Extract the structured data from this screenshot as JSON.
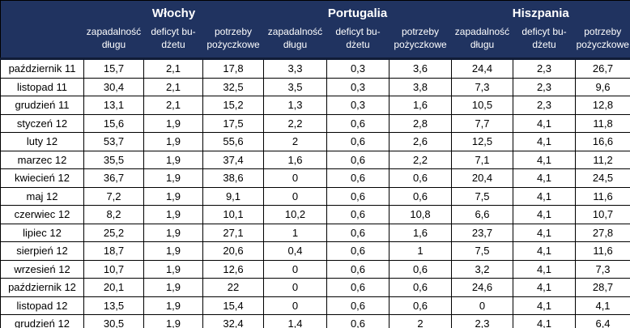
{
  "colors": {
    "header_bg": "#203360",
    "header_text": "#ffffff",
    "border": "#000000",
    "header_divider": "#101b36",
    "body_text": "#000000"
  },
  "chart_data": {
    "type": "table",
    "title": "",
    "column_groups": [
      "Włochy",
      "Portugalia",
      "Hiszpania"
    ],
    "subcolumns": [
      "zapadalność długu",
      "deficyt bu-dżetu",
      "potrzeby pożyczkowe"
    ],
    "row_labels": [
      "październik 11",
      "listopad 11",
      "grudzień 11",
      "styczeń 12",
      "luty 12",
      "marzec 12",
      "kwiecień 12",
      "maj 12",
      "czerwiec 12",
      "lipiec 12",
      "sierpień 12",
      "wrzesień 12",
      "październik 12",
      "listopad 12",
      "grudzień 12"
    ],
    "rows": [
      [
        "15,7",
        "2,1",
        "17,8",
        "3,3",
        "0,3",
        "3,6",
        "24,4",
        "2,3",
        "26,7"
      ],
      [
        "30,4",
        "2,1",
        "32,5",
        "3,5",
        "0,3",
        "3,8",
        "7,3",
        "2,3",
        "9,6"
      ],
      [
        "13,1",
        "2,1",
        "15,2",
        "1,3",
        "0,3",
        "1,6",
        "10,5",
        "2,3",
        "12,8"
      ],
      [
        "15,6",
        "1,9",
        "17,5",
        "2,2",
        "0,6",
        "2,8",
        "7,7",
        "4,1",
        "11,8"
      ],
      [
        "53,7",
        "1,9",
        "55,6",
        "2",
        "0,6",
        "2,6",
        "12,5",
        "4,1",
        "16,6"
      ],
      [
        "35,5",
        "1,9",
        "37,4",
        "1,6",
        "0,6",
        "2,2",
        "7,1",
        "4,1",
        "11,2"
      ],
      [
        "36,7",
        "1,9",
        "38,6",
        "0",
        "0,6",
        "0,6",
        "20,4",
        "4,1",
        "24,5"
      ],
      [
        "7,2",
        "1,9",
        "9,1",
        "0",
        "0,6",
        "0,6",
        "7,5",
        "4,1",
        "11,6"
      ],
      [
        "8,2",
        "1,9",
        "10,1",
        "10,2",
        "0,6",
        "10,8",
        "6,6",
        "4,1",
        "10,7"
      ],
      [
        "25,2",
        "1,9",
        "27,1",
        "1",
        "0,6",
        "1,6",
        "23,7",
        "4,1",
        "27,8"
      ],
      [
        "18,7",
        "1,9",
        "20,6",
        "0,4",
        "0,6",
        "1",
        "7,5",
        "4,1",
        "11,6"
      ],
      [
        "10,7",
        "1,9",
        "12,6",
        "0",
        "0,6",
        "0,6",
        "3,2",
        "4,1",
        "7,3"
      ],
      [
        "20,1",
        "1,9",
        "22",
        "0",
        "0,6",
        "0,6",
        "24,6",
        "4,1",
        "28,7"
      ],
      [
        "13,5",
        "1,9",
        "15,4",
        "0",
        "0,6",
        "0,6",
        "0",
        "4,1",
        "4,1"
      ],
      [
        "30,5",
        "1,9",
        "32,4",
        "1,4",
        "0,6",
        "2",
        "2,3",
        "4,1",
        "6,4"
      ]
    ]
  }
}
